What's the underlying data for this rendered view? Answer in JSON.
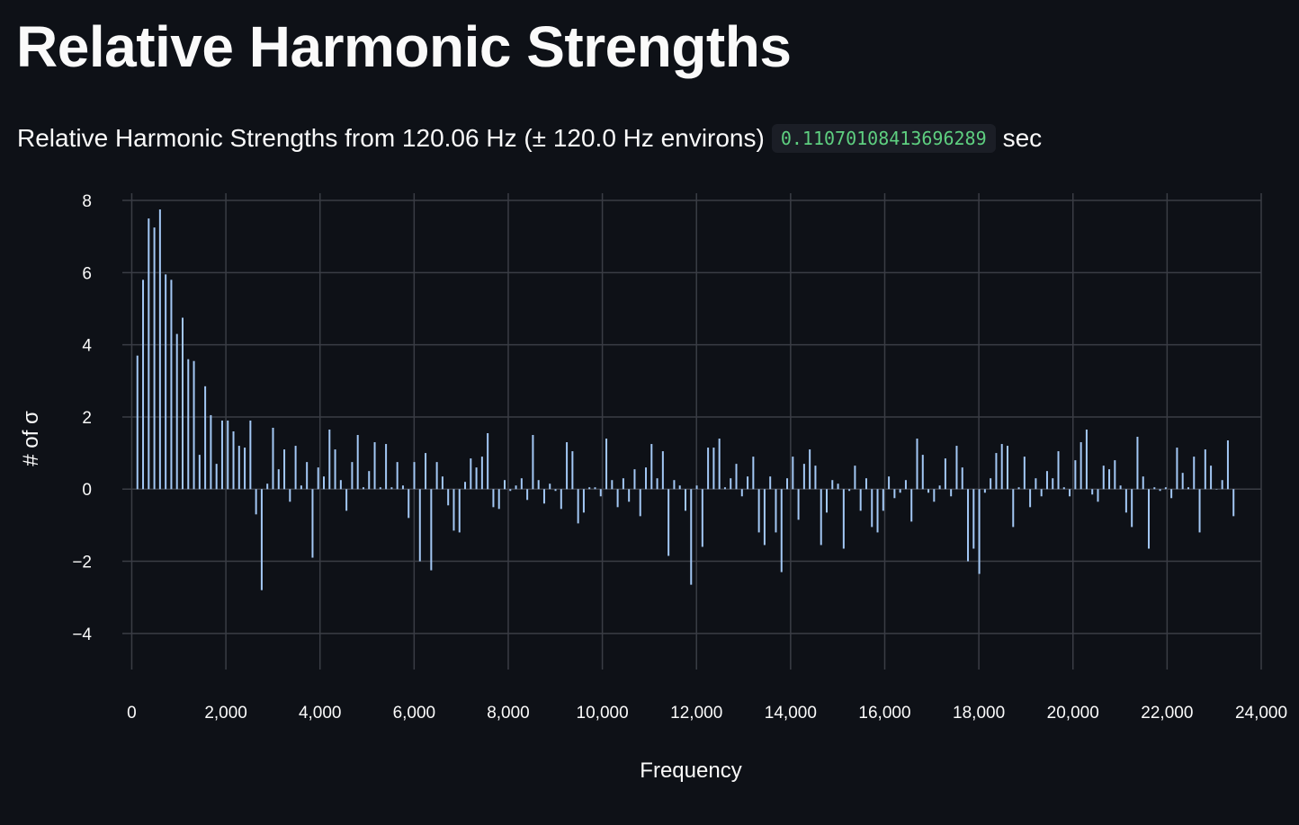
{
  "page": {
    "title": "Relative Harmonic Strengths",
    "subtitle_prefix": "Relative Harmonic Strengths from 120.06 Hz (± 120.0 Hz environs)",
    "elapsed_value": "0.11070108413696289",
    "elapsed_unit": "sec"
  },
  "colors": {
    "background": "#0e1117",
    "grid": "#3a3d45",
    "bar": "#a3c8f5",
    "text": "#fafafa",
    "code_text": "#5ecf80"
  },
  "chart_data": {
    "type": "bar",
    "xlabel": "Frequency",
    "ylabel": "# of σ",
    "xlim": [
      -200,
      24000
    ],
    "ylim": [
      -5,
      8.2
    ],
    "x_ticks": [
      0,
      2000,
      4000,
      6000,
      8000,
      10000,
      12000,
      14000,
      16000,
      18000,
      20000,
      22000,
      24000
    ],
    "x_tick_labels": [
      "0",
      "2,000",
      "4,000",
      "6,000",
      "8,000",
      "10,000",
      "12,000",
      "14,000",
      "16,000",
      "18,000",
      "20,000",
      "22,000",
      "24,000"
    ],
    "y_ticks": [
      -4,
      -2,
      0,
      2,
      4,
      6,
      8
    ],
    "y_tick_labels": [
      "−4",
      "−2",
      "0",
      "2",
      "4",
      "6",
      "8"
    ],
    "grid": true,
    "series": [
      {
        "x0": 120.06,
        "dx": 120.06,
        "values": [
          3.7,
          5.8,
          7.5,
          7.25,
          7.75,
          5.95,
          5.8,
          4.3,
          4.75,
          3.6,
          3.55,
          0.95,
          2.85,
          2.05,
          0.7,
          1.9,
          1.9,
          1.6,
          1.2,
          1.15,
          1.9,
          -0.7,
          -2.8,
          0.15,
          1.7,
          0.55,
          1.1,
          -0.35,
          1.2,
          0.1,
          0.75,
          -1.9,
          0.6,
          0.35,
          1.65,
          1.1,
          0.25,
          -0.6,
          0.75,
          1.5,
          0.05,
          0.5,
          1.3,
          0.05,
          1.25,
          0.05,
          0.75,
          0.1,
          -0.8,
          0.75,
          -2.0,
          1.0,
          -2.25,
          0.75,
          0.35,
          -0.45,
          -1.15,
          -1.2,
          0.2,
          0.85,
          0.6,
          0.9,
          1.55,
          -0.5,
          -0.55,
          0.25,
          -0.05,
          0.1,
          0.3,
          -0.3,
          1.5,
          0.25,
          -0.4,
          0.15,
          -0.05,
          -0.55,
          1.3,
          1.05,
          -0.95,
          -0.65,
          0.05,
          0.05,
          -0.2,
          1.4,
          0.25,
          -0.5,
          0.3,
          -0.35,
          0.55,
          -0.75,
          0.6,
          1.25,
          0.3,
          1.05,
          -1.85,
          0.25,
          0.1,
          -0.6,
          -2.65,
          0.1,
          -1.6,
          1.15,
          1.15,
          1.4,
          0.05,
          0.3,
          0.7,
          -0.2,
          0.35,
          0.9,
          -1.2,
          -1.55,
          0.35,
          -1.2,
          -2.3,
          0.3,
          0.9,
          -0.85,
          0.7,
          1.1,
          0.65,
          -1.55,
          -0.65,
          0.25,
          0.15,
          -1.65,
          -0.05,
          0.65,
          -0.6,
          0.3,
          -1.05,
          -1.2,
          -0.6,
          0.35,
          -0.25,
          -0.1,
          0.25,
          -0.9,
          1.4,
          0.95,
          -0.1,
          -0.35,
          0.1,
          0.85,
          -0.2,
          1.2,
          0.6,
          -2.0,
          -1.65,
          -2.35,
          -0.1,
          0.3,
          1.0,
          1.25,
          1.2,
          -1.05,
          0.05,
          0.9,
          -0.5,
          0.3,
          -0.2,
          0.5,
          0.3,
          1.05,
          0.05,
          -0.2,
          0.8,
          1.3,
          1.65,
          -0.15,
          -0.35,
          0.65,
          0.55,
          0.8,
          0.1,
          -0.65,
          -1.05,
          1.45,
          0.35,
          -1.65,
          0.05,
          -0.05,
          0.05,
          -0.25,
          1.15,
          0.45,
          0.05,
          0.9,
          -1.2,
          1.1,
          0.65,
          0.0,
          0.25,
          1.35,
          -0.75
        ]
      }
    ]
  }
}
